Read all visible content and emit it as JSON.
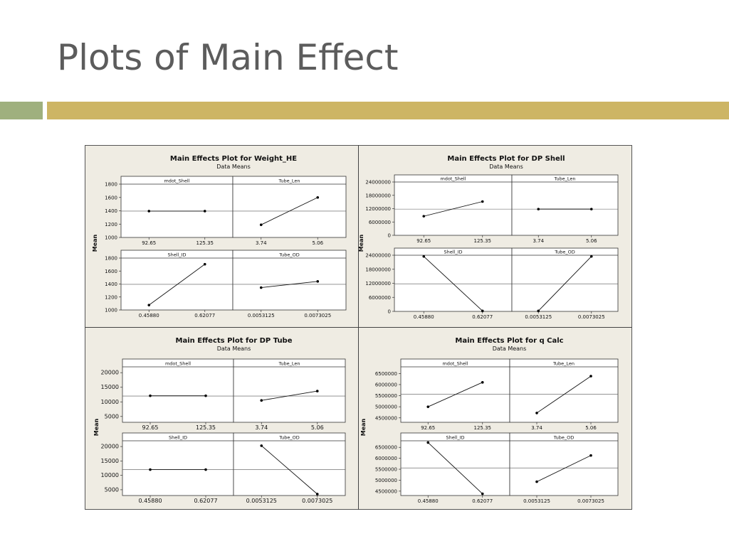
{
  "slide": {
    "title": "Plots of Main Effect",
    "colors": {
      "title": "#5c5c5c",
      "bar_green": "#9fb07e",
      "bar_gold": "#cdb564",
      "panel_bg": "#efece3"
    }
  },
  "chart_data": [
    {
      "type": "line",
      "title": "Main Effects Plot for Weight_HE",
      "subtitle": "Data Means",
      "ylabel": "Mean",
      "ylim": [
        1000,
        1800
      ],
      "yticks": [
        1000,
        1200,
        1400,
        1600,
        1800
      ],
      "ytick_labels": [
        "1000",
        "1200",
        "1400",
        "1600",
        "1800"
      ],
      "mean_line": 1395,
      "panels": [
        {
          "name": "mdot_Shell",
          "categories": [
            "92.65",
            "125.35"
          ],
          "values": [
            1395,
            1395
          ]
        },
        {
          "name": "Tube_Len",
          "categories": [
            "3.74",
            "5.06"
          ],
          "values": [
            1190,
            1600
          ]
        },
        {
          "name": "Shell_ID",
          "categories": [
            "0.45880",
            "0.62077"
          ],
          "values": [
            1075,
            1705
          ]
        },
        {
          "name": "Tube_OD",
          "categories": [
            "0.0053125",
            "0.0073025"
          ],
          "values": [
            1345,
            1440
          ]
        }
      ]
    },
    {
      "type": "line",
      "title": "Main Effects Plot for DP Shell",
      "subtitle": "Data Means",
      "ylabel": "Mean",
      "ylim": [
        0,
        24000000
      ],
      "yticks": [
        0,
        6000000,
        12000000,
        18000000,
        24000000
      ],
      "ytick_labels": [
        "0",
        "6000000",
        "12000000",
        "18000000",
        "24000000"
      ],
      "mean_line": 11800000,
      "panels": [
        {
          "name": "mdot_Shell",
          "categories": [
            "92.65",
            "125.35"
          ],
          "values": [
            8600000,
            15200000
          ]
        },
        {
          "name": "Tube_Len",
          "categories": [
            "3.74",
            "5.06"
          ],
          "values": [
            11800000,
            11800000
          ]
        },
        {
          "name": "Shell_ID",
          "categories": [
            "0.45880",
            "0.62077"
          ],
          "values": [
            23500000,
            200000
          ]
        },
        {
          "name": "Tube_OD",
          "categories": [
            "0.0053125",
            "0.0073025"
          ],
          "values": [
            200000,
            23500000
          ]
        }
      ]
    },
    {
      "type": "line",
      "title": "Main Effects Plot for DP Tube",
      "subtitle": "Data Means",
      "ylabel": "Mean",
      "ylim": [
        3000,
        22000
      ],
      "yticks": [
        5000,
        10000,
        15000,
        20000
      ],
      "ytick_labels": [
        "5000",
        "10000",
        "15000",
        "20000"
      ],
      "mean_line": 12000,
      "panels": [
        {
          "name": "mdot_Shell",
          "categories": [
            "92.65",
            "125.35"
          ],
          "values": [
            12100,
            12100
          ]
        },
        {
          "name": "Tube_Len",
          "categories": [
            "3.74",
            "5.06"
          ],
          "values": [
            10500,
            13700
          ]
        },
        {
          "name": "Shell_ID",
          "categories": [
            "0.45880",
            "0.62077"
          ],
          "values": [
            12000,
            12000
          ]
        },
        {
          "name": "Tube_OD",
          "categories": [
            "0.0053125",
            "0.0073025"
          ],
          "values": [
            20300,
            3500
          ]
        }
      ]
    },
    {
      "type": "line",
      "title": "Main Effects Plot for q Calc",
      "subtitle": "Data Means",
      "ylabel": "Mean",
      "ylim": [
        4300000,
        6800000
      ],
      "yticks": [
        4500000,
        5000000,
        5500000,
        6000000,
        6500000
      ],
      "ytick_labels": [
        "4500000",
        "5000000",
        "5500000",
        "6000000",
        "6500000"
      ],
      "mean_line": 5560000,
      "panels": [
        {
          "name": "mdot_Shell",
          "categories": [
            "92.65",
            "125.35"
          ],
          "values": [
            5000000,
            6100000
          ]
        },
        {
          "name": "Tube_Len",
          "categories": [
            "3.74",
            "5.06"
          ],
          "values": [
            4720000,
            6380000
          ]
        },
        {
          "name": "Shell_ID",
          "categories": [
            "0.45880",
            "0.62077"
          ],
          "values": [
            6720000,
            4380000
          ]
        },
        {
          "name": "Tube_OD",
          "categories": [
            "0.0053125",
            "0.0073025"
          ],
          "values": [
            4930000,
            6130000
          ]
        }
      ]
    }
  ]
}
